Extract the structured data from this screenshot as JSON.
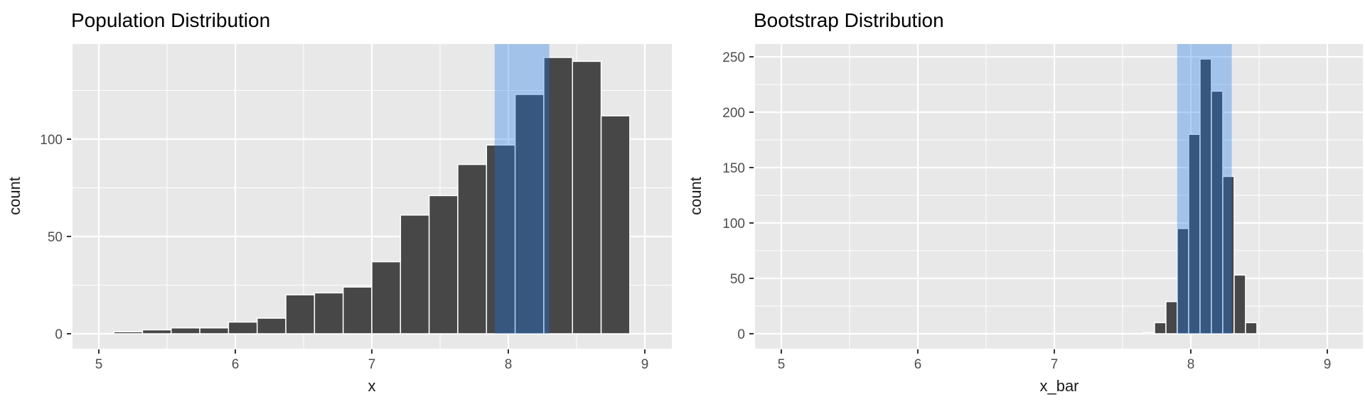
{
  "figure": {
    "background": "#FFFFFF"
  },
  "theme": {
    "panel_background": "#E8E8E8",
    "grid_color": "#FFFFFF",
    "bar_fill": "#474747",
    "bar_outline": "#FFFFFF",
    "highlighted_bar_color": "#39587F",
    "band_over_background_color": "#A9C5EB",
    "band_overlay_color": "#1E78EB",
    "band_overlay_alpha": 0.34,
    "tick_label_color": "#4D4D4D",
    "tick_mark_color": "#333333",
    "title_color": "#000000"
  },
  "chart_data": [
    {
      "type": "bar",
      "subtype": "histogram",
      "title": "Population Distribution",
      "xlabel": "x",
      "ylabel": "count",
      "x_ticks": [
        5,
        6,
        7,
        8,
        9
      ],
      "y_ticks": [
        0,
        50,
        100
      ],
      "xlim": [
        4.81,
        9.2
      ],
      "ylim": [
        0,
        149
      ],
      "grid": true,
      "bin_start": 5.11,
      "bin_width": 0.21,
      "counts": [
        1,
        2,
        3,
        3,
        6,
        8,
        20,
        21,
        24,
        37,
        61,
        71,
        87,
        97,
        123,
        142,
        140,
        112
      ],
      "highlight_band": {
        "from": 7.9,
        "to": 8.3
      }
    },
    {
      "type": "bar",
      "subtype": "histogram",
      "title": "Bootstrap Distribution",
      "xlabel": "x_bar",
      "ylabel": "count",
      "x_ticks": [
        5,
        6,
        7,
        8,
        9
      ],
      "y_ticks": [
        0,
        50,
        100,
        150,
        200,
        250
      ],
      "xlim": [
        4.81,
        9.26
      ],
      "ylim": [
        0,
        261
      ],
      "grid": true,
      "bin_start": 7.651,
      "bin_width": 0.0833,
      "counts": [
        1,
        10,
        29,
        95,
        180,
        248,
        219,
        142,
        53,
        10
      ],
      "highlight_band": {
        "from": 7.9,
        "to": 8.3
      }
    }
  ]
}
